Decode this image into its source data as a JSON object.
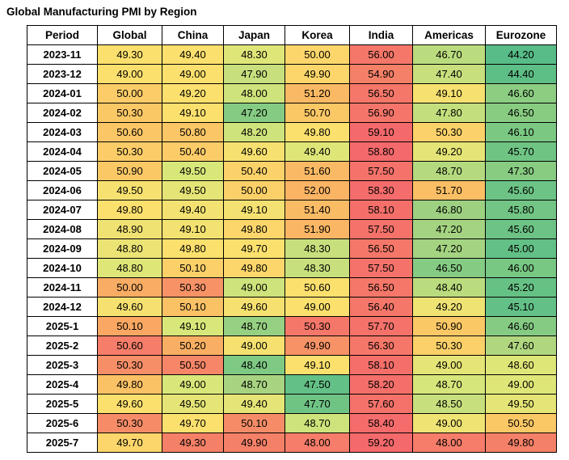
{
  "title": "Global Manufacturing PMI by Region",
  "chart_data": {
    "type": "heatmap",
    "columns": [
      "Period",
      "Global",
      "China",
      "Japan",
      "Korea",
      "India",
      "Americas",
      "Eurozone"
    ],
    "rows": [
      {
        "period": "2023-11",
        "values": [
          49.3,
          49.4,
          48.3,
          50.0,
          56.0,
          46.7,
          44.2
        ],
        "levels": [
          0.5,
          0.5,
          0.4,
          0.55,
          0.95,
          0.3,
          0.0
        ]
      },
      {
        "period": "2023-12",
        "values": [
          49.0,
          49.0,
          47.9,
          49.9,
          54.9,
          47.4,
          44.4
        ],
        "levels": [
          0.5,
          0.5,
          0.33,
          0.55,
          0.92,
          0.33,
          0.02
        ]
      },
      {
        "period": "2024-01",
        "values": [
          50.0,
          49.2,
          48.0,
          51.2,
          56.5,
          49.1,
          46.6
        ],
        "levels": [
          0.6,
          0.5,
          0.35,
          0.68,
          0.95,
          0.48,
          0.17
        ]
      },
      {
        "period": "2024-02",
        "values": [
          50.3,
          49.1,
          47.2,
          50.7,
          56.9,
          47.8,
          46.5
        ],
        "levels": [
          0.62,
          0.5,
          0.15,
          0.62,
          0.96,
          0.32,
          0.16
        ]
      },
      {
        "period": "2024-03",
        "values": [
          50.6,
          50.8,
          48.2,
          49.8,
          59.1,
          50.3,
          46.1
        ],
        "levels": [
          0.63,
          0.63,
          0.35,
          0.5,
          1.0,
          0.57,
          0.12
        ]
      },
      {
        "period": "2024-04",
        "values": [
          50.3,
          50.4,
          49.6,
          49.4,
          58.8,
          49.2,
          45.7
        ],
        "levels": [
          0.6,
          0.6,
          0.48,
          0.4,
          1.0,
          0.42,
          0.08
        ]
      },
      {
        "period": "2024-05",
        "values": [
          50.9,
          49.5,
          50.4,
          51.6,
          57.5,
          48.7,
          47.3
        ],
        "levels": [
          0.62,
          0.38,
          0.57,
          0.68,
          0.97,
          0.28,
          0.16
        ]
      },
      {
        "period": "2024-06",
        "values": [
          49.5,
          49.5,
          50.0,
          52.0,
          58.3,
          51.7,
          45.6
        ],
        "levels": [
          0.48,
          0.42,
          0.58,
          0.7,
          0.99,
          0.66,
          0.07
        ]
      },
      {
        "period": "2024-07",
        "values": [
          49.8,
          49.4,
          49.1,
          51.4,
          58.1,
          46.8,
          45.8
        ],
        "levels": [
          0.5,
          0.47,
          0.47,
          0.67,
          0.98,
          0.22,
          0.09
        ]
      },
      {
        "period": "2024-08",
        "values": [
          48.9,
          49.1,
          49.8,
          51.9,
          57.5,
          47.2,
          45.6
        ],
        "levels": [
          0.46,
          0.47,
          0.55,
          0.69,
          0.97,
          0.24,
          0.07
        ]
      },
      {
        "period": "2024-09",
        "values": [
          48.8,
          49.8,
          49.7,
          48.3,
          56.5,
          47.2,
          45.0
        ],
        "levels": [
          0.44,
          0.5,
          0.5,
          0.33,
          0.95,
          0.24,
          0.04
        ]
      },
      {
        "period": "2024-10",
        "values": [
          48.8,
          50.1,
          49.8,
          48.3,
          57.5,
          46.5,
          46.0
        ],
        "levels": [
          0.4,
          0.58,
          0.55,
          0.33,
          0.97,
          0.15,
          0.11
        ]
      },
      {
        "period": "2024-11",
        "values": [
          50.0,
          50.3,
          49.0,
          50.6,
          56.5,
          48.4,
          45.2
        ],
        "levels": [
          0.73,
          0.85,
          0.35,
          0.5,
          0.95,
          0.3,
          0.05
        ]
      },
      {
        "period": "2024-12",
        "values": [
          49.6,
          50.1,
          49.6,
          49.0,
          56.4,
          49.2,
          45.1
        ],
        "levels": [
          0.48,
          0.65,
          0.48,
          0.5,
          0.95,
          0.45,
          0.04
        ]
      },
      {
        "period": "2025-1",
        "values": [
          50.1,
          49.1,
          48.7,
          50.3,
          57.7,
          50.9,
          46.6
        ],
        "levels": [
          0.75,
          0.38,
          0.2,
          0.95,
          0.97,
          0.62,
          0.15
        ]
      },
      {
        "period": "2025-2",
        "values": [
          50.6,
          50.2,
          49.0,
          49.9,
          56.3,
          50.3,
          47.6
        ],
        "levels": [
          0.93,
          0.72,
          0.48,
          0.85,
          0.95,
          0.58,
          0.27
        ]
      },
      {
        "period": "2025-3",
        "values": [
          50.3,
          50.5,
          48.4,
          49.1,
          58.1,
          49.0,
          48.6
        ],
        "levels": [
          0.87,
          0.9,
          0.13,
          0.5,
          0.98,
          0.42,
          0.4
        ]
      },
      {
        "period": "2025-4",
        "values": [
          49.8,
          49.0,
          48.7,
          47.5,
          58.2,
          48.7,
          49.0
        ],
        "levels": [
          0.65,
          0.38,
          0.25,
          0.04,
          0.98,
          0.37,
          0.4
        ]
      },
      {
        "period": "2025-5",
        "values": [
          49.6,
          49.5,
          49.4,
          47.7,
          57.6,
          48.5,
          49.5
        ],
        "levels": [
          0.5,
          0.42,
          0.42,
          0.08,
          0.97,
          0.33,
          0.42
        ]
      },
      {
        "period": "2025-6",
        "values": [
          50.3,
          49.7,
          50.1,
          48.7,
          58.4,
          49.0,
          50.5
        ],
        "levels": [
          0.88,
          0.5,
          0.88,
          0.35,
          0.99,
          0.45,
          0.62
        ]
      },
      {
        "period": "2025-7",
        "values": [
          49.7,
          49.3,
          49.9,
          48.0,
          59.2,
          48.0,
          49.8
        ],
        "levels": [
          0.55,
          0.92,
          0.92,
          0.93,
          1.0,
          0.93,
          0.92
        ]
      }
    ],
    "color_scale": {
      "description": "green = low PMI, yellow = mid, red = high PMI",
      "stops": [
        {
          "pos": 0.0,
          "color": "#57BC87"
        },
        {
          "pos": 0.125,
          "color": "#7CC983"
        },
        {
          "pos": 0.25,
          "color": "#A8D481"
        },
        {
          "pos": 0.375,
          "color": "#D8E77A"
        },
        {
          "pos": 0.5,
          "color": "#FCE06E"
        },
        {
          "pos": 0.625,
          "color": "#FBC766"
        },
        {
          "pos": 0.75,
          "color": "#F9A762"
        },
        {
          "pos": 0.875,
          "color": "#F68D67"
        },
        {
          "pos": 1.0,
          "color": "#F4696B"
        }
      ]
    },
    "title": "Global Manufacturing PMI by Region",
    "value_format": "0.00",
    "grid": true,
    "border_color": "#000000",
    "text_color": "#000000",
    "header_background": "#FFFFFF"
  }
}
